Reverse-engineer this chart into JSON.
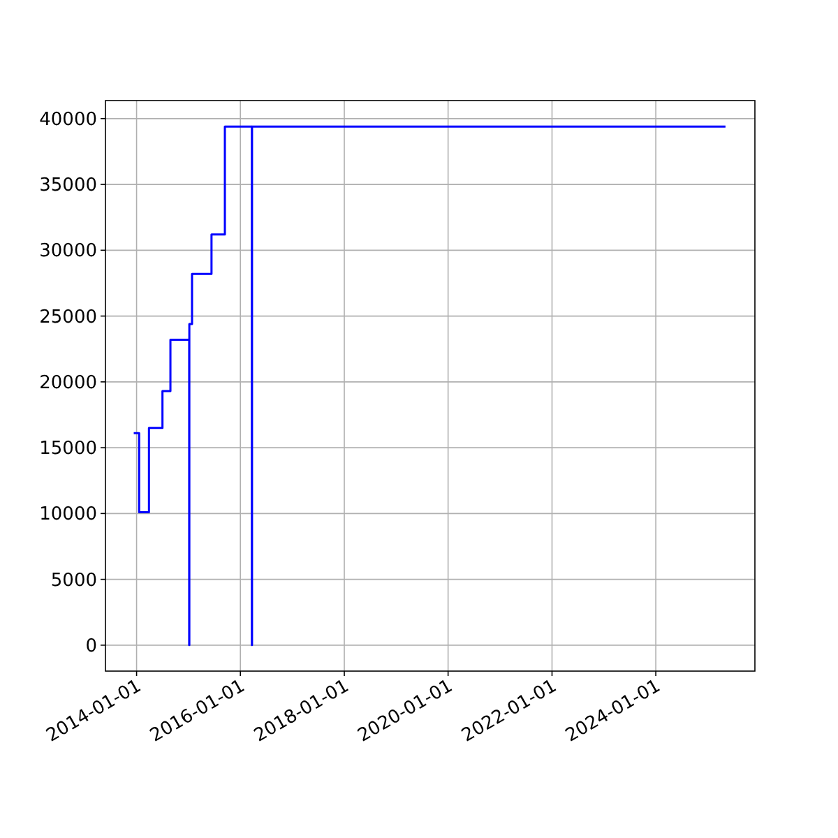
{
  "chart_data": {
    "type": "step",
    "x": [
      "2013-12-12",
      "2014-01-19",
      "2014-03-29",
      "2014-07-02",
      "2014-08-27",
      "2015-01-06",
      "2015-01-07",
      "2015-01-26",
      "2015-06-12",
      "2015-09-14",
      "2016-03-22",
      "2016-03-23",
      "2025-05-05"
    ],
    "series": [
      {
        "color": "#0000ff",
        "values": [
          16100,
          10100,
          16500,
          19300,
          23200,
          0,
          24400,
          28200,
          31200,
          39400,
          0,
          39400,
          39400
        ]
      }
    ],
    "xlim": [
      "2013-05-27",
      "2025-11-28"
    ],
    "xticks": [
      "2014-01-01",
      "2016-01-01",
      "2018-01-01",
      "2020-01-01",
      "2022-01-01",
      "2024-01-01"
    ],
    "ylim": [
      -1970,
      41370
    ],
    "yticks": [
      0,
      5000,
      10000,
      15000,
      20000,
      25000,
      30000,
      35000,
      40000
    ],
    "grid": true
  }
}
